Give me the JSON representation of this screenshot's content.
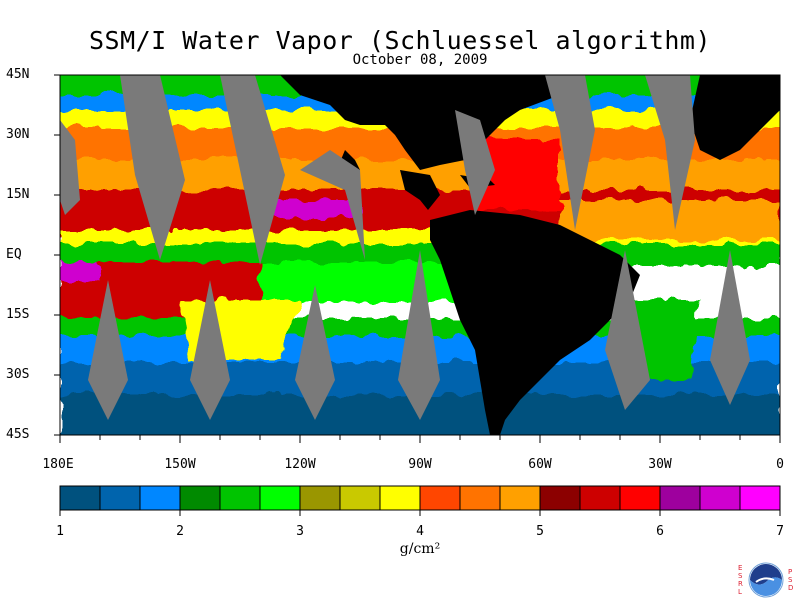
{
  "title": "SSM/I Water Vapor (Schluessel algorithm)",
  "date": "October 08, 2009",
  "lat_labels": [
    "45N",
    "30N",
    "15N",
    "EQ",
    "15S",
    "30S",
    "45S"
  ],
  "lon_labels": [
    "180E",
    "150W",
    "120W",
    "90W",
    "60W",
    "30W",
    "0"
  ],
  "colorbar": {
    "colors": [
      "#00517e",
      "#0064ad",
      "#0087ff",
      "#008a00",
      "#00c400",
      "#00ff00",
      "#9a9600",
      "#c9c900",
      "#ffff00",
      "#ff4600",
      "#ff7300",
      "#ffa000",
      "#8c0000",
      "#cd0000",
      "#ff0000",
      "#9e009e",
      "#cf00cf",
      "#ff00ff"
    ],
    "tick_labels": [
      "1",
      "2",
      "3",
      "4",
      "5",
      "6",
      "7"
    ],
    "units": "g/cm²"
  },
  "logo": {
    "name": "noaa",
    "letters_left": [
      "E",
      "S",
      "R",
      "L"
    ],
    "letters_right": [
      "P",
      "S",
      "D"
    ]
  }
}
